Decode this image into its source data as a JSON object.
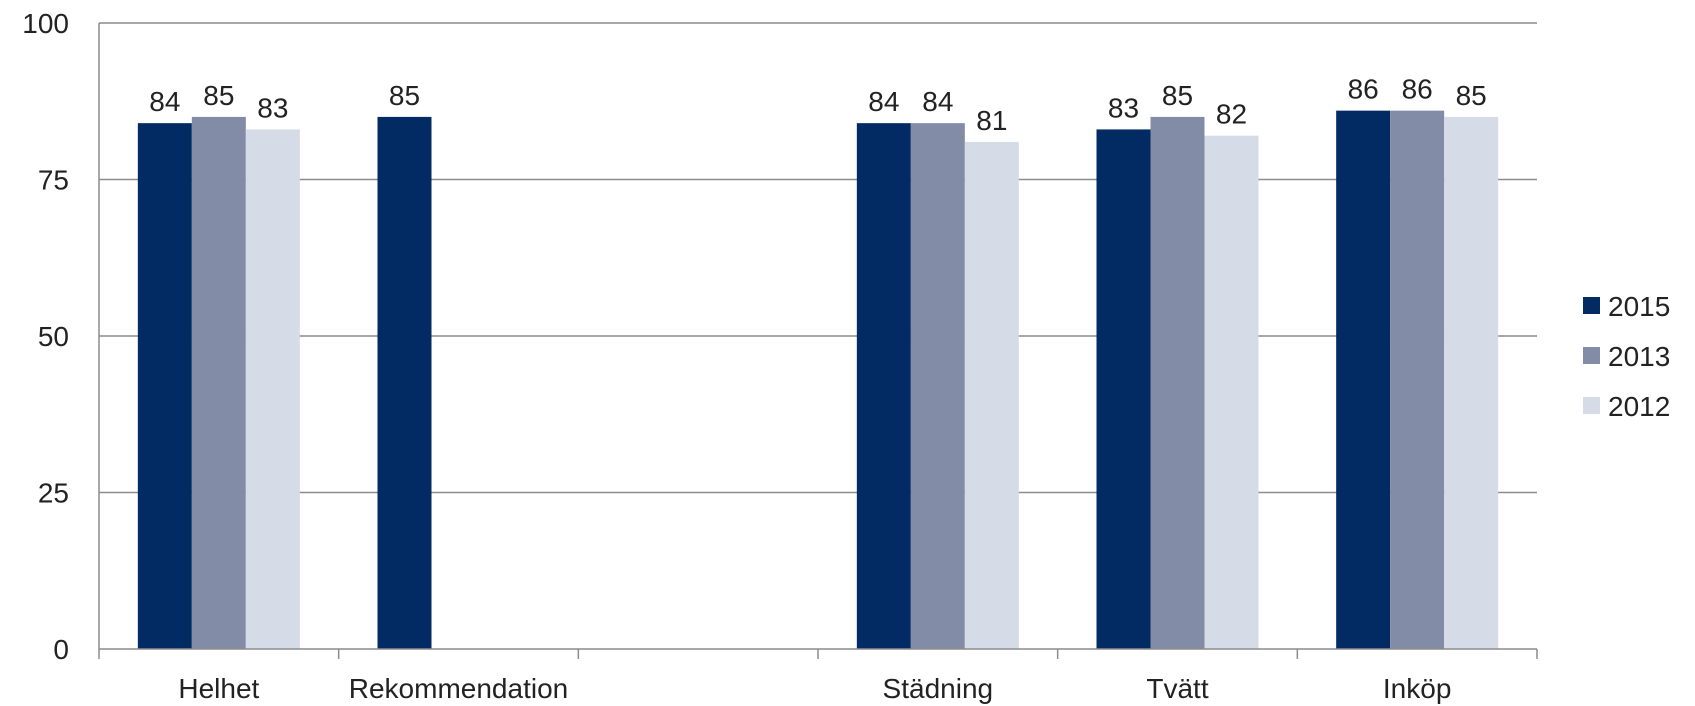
{
  "chart_data": {
    "type": "bar",
    "categories": [
      "Helhet",
      "Rekommendation",
      "",
      "Städning",
      "Tvätt",
      "Inköp"
    ],
    "series": [
      {
        "name": "2015",
        "color": "#022b63",
        "values": [
          84,
          85,
          null,
          84,
          83,
          86
        ]
      },
      {
        "name": "2013",
        "color": "#828ca6",
        "values": [
          85,
          null,
          null,
          84,
          85,
          86
        ]
      },
      {
        "name": "2012",
        "color": "#d6dbe8",
        "values": [
          83,
          null,
          null,
          81,
          82,
          85
        ]
      }
    ],
    "ylim": [
      0,
      100
    ],
    "yticks": [
      0,
      25,
      50,
      75,
      100
    ],
    "grid": true,
    "legend": "right",
    "title": "",
    "xlabel": "",
    "ylabel": "",
    "colors": {
      "grid": "#8c8c8c",
      "axis": "#8c8c8c",
      "text": "#222222"
    }
  }
}
